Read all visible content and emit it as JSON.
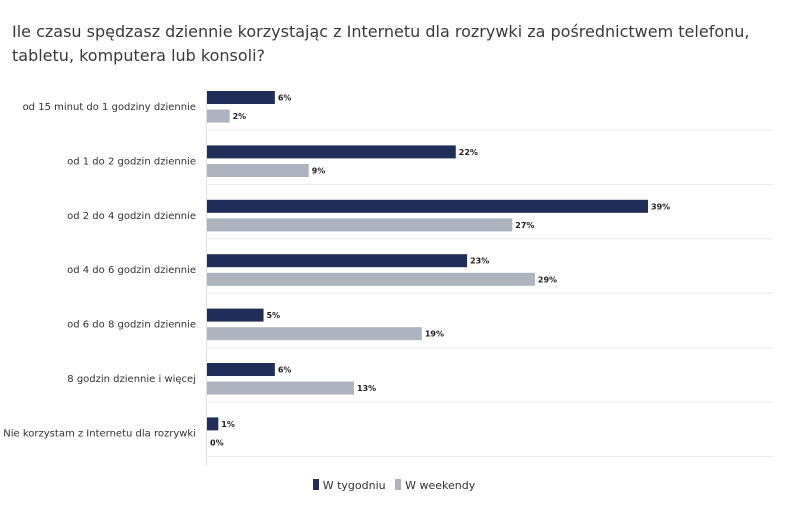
{
  "title": "Ile czasu spędzasz dziennie korzystając z Internetu dla rozrywki za pośrednictwem telefonu, tabletu, komputera lub konsoli?",
  "chart_data": {
    "type": "bar",
    "orientation": "horizontal",
    "categories": [
      "od 15 minut do 1 godziny dziennie",
      "od 1 do 2 godzin dziennie",
      "od 2 do 4 godzin dziennie",
      "od 4 do 6 godzin dziennie",
      "od 6 do 8 godzin dziennie",
      "8 godzin dziennie i więcej",
      "Nie korzystam z Internetu dla rozrywki"
    ],
    "series": [
      {
        "name": "W tygodniu",
        "color": "#1f2d58",
        "values": [
          6,
          22,
          39,
          23,
          5,
          6,
          1
        ]
      },
      {
        "name": "W weekendy",
        "color": "#adb3bf",
        "values": [
          2,
          9,
          27,
          29,
          19,
          13,
          0
        ]
      }
    ],
    "value_suffix": "%",
    "xlim": [
      0,
      43
    ],
    "grid": "horizontal separators",
    "legend_position": "bottom-center"
  }
}
